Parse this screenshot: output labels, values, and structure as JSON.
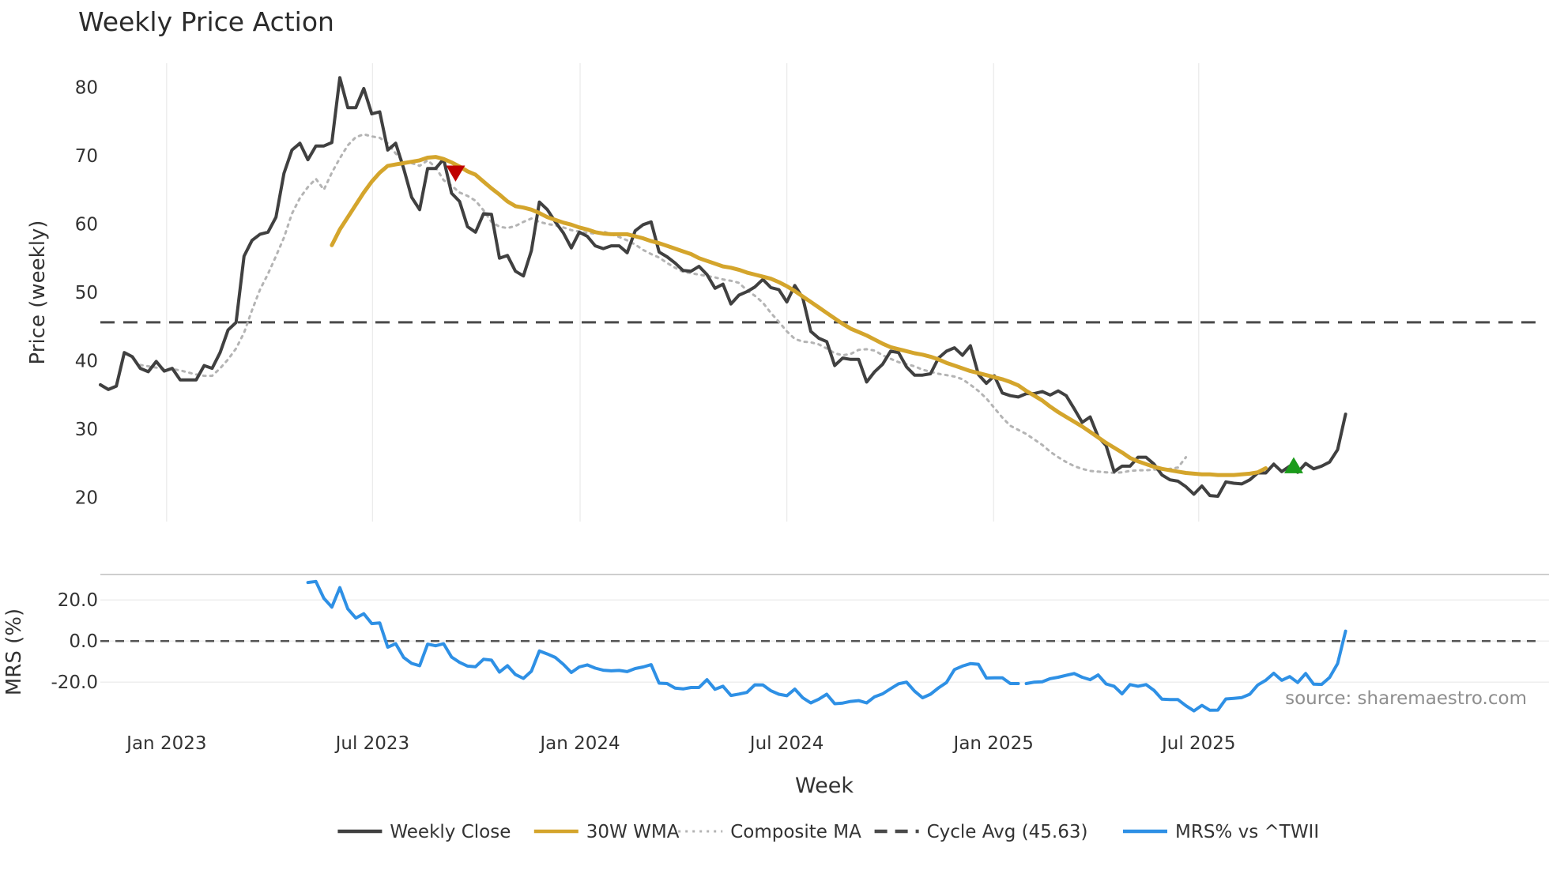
{
  "chart_data": [
    {
      "type": "line",
      "title": "Weekly Price Action",
      "xlabel": "",
      "ylabel": "Price (weekly)",
      "ylim": [
        16.5,
        83.5
      ],
      "yticks": [
        20,
        30,
        40,
        50,
        60,
        70,
        80
      ],
      "x_labels": [
        "Jan 2023",
        "Jul 2023",
        "Jan 2024",
        "Jul 2024",
        "Jan 2025",
        "Jul 2025"
      ],
      "x_positions_week": [
        8.3,
        34.1,
        60.1,
        86.0,
        111.9,
        137.6
      ],
      "grid": "vertical",
      "series": [
        {
          "name": "Weekly Close",
          "color": "#404040",
          "style": "solid",
          "values": [
            36.5,
            35.8,
            36.3,
            41.2,
            40.6,
            38.9,
            38.4,
            39.9,
            38.5,
            38.9,
            37.2,
            37.2,
            37.2,
            39.3,
            38.9,
            41.2,
            44.5,
            45.6,
            55.3,
            57.6,
            58.5,
            58.8,
            61.0,
            67.4,
            70.8,
            71.8,
            69.4,
            71.4,
            71.4,
            71.9,
            81.4,
            77.0,
            77.0,
            79.8,
            76.1,
            76.4,
            70.8,
            71.8,
            68.1,
            63.9,
            62.1,
            68.1,
            68.1,
            69.5,
            64.5,
            63.3,
            59.6,
            58.8,
            61.5,
            61.4,
            55.0,
            55.4,
            53.1,
            52.4,
            56.1,
            63.2,
            62.1,
            60.3,
            58.7,
            56.5,
            58.8,
            58.2,
            56.8,
            56.4,
            56.8,
            56.8,
            55.8,
            59.0,
            59.9,
            60.3,
            55.9,
            55.2,
            54.3,
            53.2,
            53.1,
            53.8,
            52.6,
            50.6,
            51.2,
            48.3,
            49.6,
            50.1,
            50.8,
            51.9,
            50.7,
            50.4,
            48.6,
            51.0,
            49.2,
            44.3,
            43.3,
            42.8,
            39.3,
            40.4,
            40.2,
            40.2,
            36.9,
            38.4,
            39.5,
            41.4,
            41.2,
            39.1,
            37.9,
            37.9,
            38.1,
            40.4,
            41.4,
            41.9,
            40.8,
            42.2,
            38.0,
            36.7,
            37.8,
            35.3,
            34.9,
            34.7,
            35.2,
            35.2,
            35.5,
            35.0,
            35.6,
            34.9,
            33.0,
            31.0,
            31.8,
            28.9,
            27.6,
            23.8,
            24.6,
            24.6,
            25.9,
            25.9,
            24.9,
            23.3,
            22.6,
            22.4,
            21.6,
            20.5,
            21.7,
            20.3,
            20.2,
            22.3,
            22.1,
            22.0,
            22.6,
            23.6,
            23.6,
            24.9,
            23.8,
            24.6,
            23.7,
            25.0,
            24.2,
            24.6,
            25.2,
            27.0,
            32.2
          ]
        },
        {
          "name": "30W WMA",
          "color": "#d4a52c",
          "style": "solid",
          "start_week": 29,
          "values": [
            56.9,
            59.2,
            61.0,
            62.8,
            64.6,
            66.2,
            67.5,
            68.5,
            68.7,
            68.9,
            69.1,
            69.3,
            69.7,
            69.8,
            69.5,
            69.0,
            68.4,
            67.7,
            67.2,
            66.2,
            65.2,
            64.3,
            63.3,
            62.6,
            62.4,
            62.1,
            61.6,
            61.0,
            60.6,
            60.2,
            59.9,
            59.5,
            59.2,
            58.8,
            58.6,
            58.5,
            58.5,
            58.5,
            58.2,
            57.9,
            57.5,
            57.2,
            56.8,
            56.4,
            56.0,
            55.6,
            55.0,
            54.6,
            54.2,
            53.8,
            53.6,
            53.3,
            52.9,
            52.6,
            52.3,
            52.0,
            51.5,
            50.9,
            50.2,
            49.4,
            48.6,
            47.8,
            47.0,
            46.2,
            45.4,
            44.7,
            44.2,
            43.7,
            43.1,
            42.5,
            42.0,
            41.7,
            41.4,
            41.1,
            40.9,
            40.6,
            40.2,
            39.7,
            39.3,
            38.9,
            38.5,
            38.2,
            37.9,
            37.6,
            37.3,
            36.9,
            36.4,
            35.6,
            34.9,
            34.2,
            33.3,
            32.5,
            31.8,
            31.1,
            30.4,
            29.6,
            28.8,
            28.0,
            27.3,
            26.6,
            25.8,
            25.3,
            24.9,
            24.5,
            24.2,
            24.0,
            23.8,
            23.6,
            23.5,
            23.4,
            23.4,
            23.3,
            23.3,
            23.3,
            23.4,
            23.5,
            23.7,
            24.3
          ]
        },
        {
          "name": "Composite MA",
          "color": "#b4b4b4",
          "style": "dotted",
          "start_week": 5,
          "values": [
            39.4,
            39.2,
            39.0,
            38.8,
            38.8,
            38.6,
            38.3,
            38.0,
            37.8,
            37.8,
            38.9,
            40.2,
            41.8,
            44.1,
            47.4,
            50.4,
            52.7,
            55.3,
            58.0,
            61.5,
            63.8,
            65.4,
            66.6,
            65.0,
            67.5,
            69.6,
            71.5,
            72.7,
            73.1,
            72.8,
            72.6,
            71.8,
            70.3,
            69.1,
            68.9,
            68.5,
            69.3,
            68.3,
            66.4,
            65.6,
            64.6,
            64.1,
            63.4,
            62.0,
            60.3,
            59.6,
            59.4,
            59.7,
            60.3,
            60.8,
            60.3,
            60.0,
            59.8,
            59.5,
            59.1,
            58.9,
            58.7,
            58.6,
            58.9,
            58.5,
            58.1,
            57.6,
            57.0,
            56.2,
            55.6,
            55.1,
            54.3,
            53.6,
            53.0,
            52.8,
            52.6,
            52.4,
            52.2,
            51.9,
            51.7,
            51.4,
            50.3,
            49.5,
            48.5,
            47.0,
            45.7,
            44.3,
            43.2,
            42.8,
            42.7,
            42.4,
            41.8,
            41.1,
            40.8,
            41.0,
            41.6,
            41.7,
            41.5,
            40.8,
            40.3,
            39.8,
            39.5,
            39.2,
            38.7,
            38.4,
            38.1,
            37.9,
            37.7,
            37.3,
            36.5,
            35.6,
            34.5,
            33.1,
            31.7,
            30.5,
            29.9,
            29.3,
            28.5,
            27.7,
            26.7,
            25.9,
            25.2,
            24.6,
            24.2,
            23.9,
            23.8,
            23.7,
            23.6,
            23.7,
            23.9,
            24.0,
            24.0,
            24.1,
            24.1,
            24.2,
            24.4,
            25.9
          ]
        },
        {
          "name": "Cycle Avg (45.63)",
          "color": "#4a4a4a",
          "style": "dashed",
          "constant": 45.63
        }
      ],
      "markers": [
        {
          "type": "sell",
          "shape": "down-triangle",
          "color": "#c00000",
          "week": 44.5,
          "value": 67.5
        },
        {
          "type": "buy",
          "shape": "up-triangle",
          "color": "#1a9b1a",
          "week": 149.5,
          "value": 24.6
        }
      ]
    },
    {
      "type": "line",
      "title": "",
      "xlabel": "Week",
      "ylabel": "MRS (%)",
      "ylim": [
        -38,
        32
      ],
      "yticks": [
        "20.0",
        "0.0",
        "-20.0"
      ],
      "ytick_values": [
        20,
        0,
        -20
      ],
      "reference_line": 0,
      "series": [
        {
          "name": "MRS% vs ^TWII",
          "color": "#2e90e5",
          "style": "solid",
          "start_week": 26,
          "gap_after_week": 115,
          "values": [
            28.5,
            29.0,
            20.8,
            16.5,
            26.0,
            15.6,
            11.2,
            13.3,
            8.5,
            8.8,
            -3.0,
            -1.3,
            -8.0,
            -10.9,
            -12.0,
            -1.5,
            -2.3,
            -1.3,
            -7.8,
            -10.4,
            -12.2,
            -12.5,
            -8.9,
            -9.3,
            -15.1,
            -12.0,
            -16.3,
            -18.2,
            -14.7,
            -4.8,
            -6.3,
            -8.0,
            -11.3,
            -15.3,
            -12.6,
            -11.6,
            -13.2,
            -14.2,
            -14.5,
            -14.3,
            -14.9,
            -13.4,
            -12.6,
            -11.5,
            -20.5,
            -20.7,
            -22.9,
            -23.3,
            -22.6,
            -22.6,
            -18.8,
            -23.5,
            -22.0,
            -26.5,
            -25.8,
            -25.0,
            -21.3,
            -21.4,
            -24.2,
            -25.9,
            -26.6,
            -23.4,
            -27.6,
            -30.1,
            -28.3,
            -25.9,
            -30.5,
            -30.2,
            -29.4,
            -29.0,
            -30.1,
            -27.1,
            -25.7,
            -23.2,
            -20.8,
            -20.0,
            -24.4,
            -27.6,
            -25.9,
            -22.8,
            -20.2,
            -13.9,
            -12.2,
            -11.0,
            -11.3,
            -18.0,
            -17.9,
            -17.9,
            -20.7,
            -20.7,
            -20.7,
            -20.0,
            -19.8,
            -18.3,
            -17.6,
            -16.7,
            -15.8,
            -17.6,
            -18.8,
            -16.5,
            -20.9,
            -22.0,
            -25.7,
            -21.2,
            -22.0,
            -21.2,
            -24.0,
            -28.3,
            -28.5,
            -28.5,
            -31.5,
            -34.0,
            -31.3,
            -33.7,
            -33.6,
            -28.2,
            -27.9,
            -27.5,
            -25.9,
            -21.4,
            -19.1,
            -15.7,
            -19.1,
            -17.3,
            -20.2,
            -15.8,
            -21.0,
            -21.1,
            -17.7,
            -11.0,
            4.8
          ]
        }
      ]
    }
  ],
  "legend": {
    "placement": "bottom-center",
    "items": [
      {
        "label": "Weekly Close",
        "color": "#404040",
        "style": "solid"
      },
      {
        "label": "30W WMA",
        "color": "#d4a52c",
        "style": "solid"
      },
      {
        "label": "Composite MA",
        "color": "#b4b4b4",
        "style": "dotted"
      },
      {
        "label": "Cycle Avg (45.63)",
        "color": "#4a4a4a",
        "style": "dashed"
      },
      {
        "label": "MRS% vs ^TWII",
        "color": "#2e90e5",
        "style": "solid"
      }
    ]
  },
  "watermark": "source: sharemaestro.com"
}
